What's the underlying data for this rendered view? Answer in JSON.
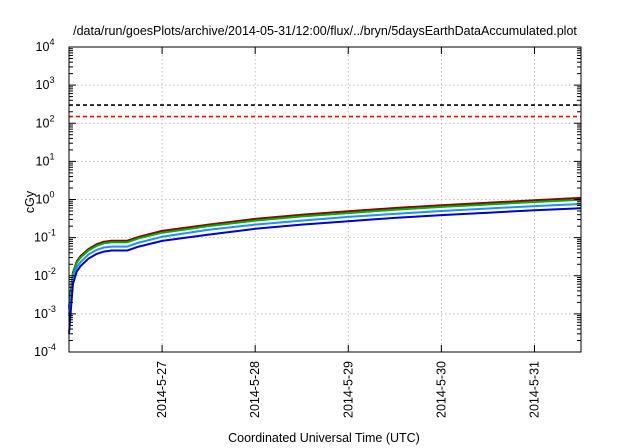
{
  "chart_data": {
    "type": "line",
    "title": "/data/run/goesPlots/archive/2014-05-31/12:00/flux/../bryn/5daysEarthDataAccumulated.plot",
    "xlabel": "Coordinated Universal Time (UTC)",
    "ylabel": "cGy",
    "y_scale": "log",
    "ylim": [
      0.0001,
      10000
    ],
    "xlim": [
      "2014-05-26T00:00",
      "2014-05-31T12:00"
    ],
    "grid": true,
    "x_ticks": [
      {
        "x": "2014-05-27T00:00",
        "label": "2014-5-27"
      },
      {
        "x": "2014-05-28T00:00",
        "label": "2014-5-28"
      },
      {
        "x": "2014-05-29T00:00",
        "label": "2014-5-29"
      },
      {
        "x": "2014-05-30T00:00",
        "label": "2014-5-30"
      },
      {
        "x": "2014-05-31T00:00",
        "label": "2014-5-31"
      }
    ],
    "y_ticks": [
      {
        "y": 0.0001,
        "base": "10",
        "exp": "-4"
      },
      {
        "y": 0.001,
        "base": "10",
        "exp": "-3"
      },
      {
        "y": 0.01,
        "base": "10",
        "exp": "-2"
      },
      {
        "y": 0.1,
        "base": "10",
        "exp": "-1"
      },
      {
        "y": 1,
        "base": "10",
        "exp": "0"
      },
      {
        "y": 10,
        "base": "10",
        "exp": "1"
      },
      {
        "y": 100,
        "base": "10",
        "exp": "2"
      },
      {
        "y": 1000,
        "base": "10",
        "exp": "3"
      },
      {
        "y": 10000,
        "base": "10",
        "exp": "4"
      }
    ],
    "hlines": [
      {
        "y": 300,
        "color": "#000000",
        "style": "dashed"
      },
      {
        "y": 150,
        "color": "#ff0000",
        "style": "dashed"
      }
    ],
    "series": [
      {
        "color": "#8b0000",
        "points": [
          [
            "2014-05-26T00:00",
            0.0015
          ],
          [
            "2014-05-26T01:00",
            0.012
          ],
          [
            "2014-05-26T02:00",
            0.024
          ],
          [
            "2014-05-26T03:00",
            0.033
          ],
          [
            "2014-05-26T05:00",
            0.05
          ],
          [
            "2014-05-26T07:00",
            0.066
          ],
          [
            "2014-05-26T09:00",
            0.078
          ],
          [
            "2014-05-26T11:00",
            0.083
          ],
          [
            "2014-05-26T14:00",
            0.083
          ],
          [
            "2014-05-26T15:00",
            0.083
          ],
          [
            "2014-05-26T18:00",
            0.105
          ],
          [
            "2014-05-27T00:00",
            0.15
          ],
          [
            "2014-05-27T12:00",
            0.22
          ],
          [
            "2014-05-28T00:00",
            0.31
          ],
          [
            "2014-05-28T12:00",
            0.4
          ],
          [
            "2014-05-29T00:00",
            0.49
          ],
          [
            "2014-05-29T12:00",
            0.6
          ],
          [
            "2014-05-30T00:00",
            0.71
          ],
          [
            "2014-05-30T12:00",
            0.82
          ],
          [
            "2014-05-31T00:00",
            0.95
          ],
          [
            "2014-05-31T12:00",
            1.1
          ]
        ]
      },
      {
        "color": "#00b000",
        "points": [
          [
            "2014-05-26T00:00",
            0.0013
          ],
          [
            "2014-05-26T01:00",
            0.011
          ],
          [
            "2014-05-26T02:00",
            0.022
          ],
          [
            "2014-05-26T03:00",
            0.03
          ],
          [
            "2014-05-26T05:00",
            0.046
          ],
          [
            "2014-05-26T07:00",
            0.06
          ],
          [
            "2014-05-26T09:00",
            0.071
          ],
          [
            "2014-05-26T11:00",
            0.076
          ],
          [
            "2014-05-26T14:00",
            0.076
          ],
          [
            "2014-05-26T15:00",
            0.076
          ],
          [
            "2014-05-26T18:00",
            0.096
          ],
          [
            "2014-05-27T00:00",
            0.135
          ],
          [
            "2014-05-27T12:00",
            0.2
          ],
          [
            "2014-05-28T00:00",
            0.28
          ],
          [
            "2014-05-28T12:00",
            0.36
          ],
          [
            "2014-05-29T00:00",
            0.44
          ],
          [
            "2014-05-29T12:00",
            0.54
          ],
          [
            "2014-05-30T00:00",
            0.64
          ],
          [
            "2014-05-30T12:00",
            0.74
          ],
          [
            "2014-05-31T00:00",
            0.86
          ],
          [
            "2014-05-31T12:00",
            0.98
          ]
        ]
      },
      {
        "color": "#1e90ff",
        "points": [
          [
            "2014-05-26T00:00",
            0.0009
          ],
          [
            "2014-05-26T01:00",
            0.008
          ],
          [
            "2014-05-26T02:00",
            0.017
          ],
          [
            "2014-05-26T03:00",
            0.023
          ],
          [
            "2014-05-26T05:00",
            0.036
          ],
          [
            "2014-05-26T07:00",
            0.047
          ],
          [
            "2014-05-26T09:00",
            0.055
          ],
          [
            "2014-05-26T11:00",
            0.058
          ],
          [
            "2014-05-26T14:00",
            0.058
          ],
          [
            "2014-05-26T15:00",
            0.058
          ],
          [
            "2014-05-26T18:00",
            0.074
          ],
          [
            "2014-05-27T00:00",
            0.105
          ],
          [
            "2014-05-27T12:00",
            0.16
          ],
          [
            "2014-05-28T00:00",
            0.22
          ],
          [
            "2014-05-28T12:00",
            0.28
          ],
          [
            "2014-05-29T00:00",
            0.35
          ],
          [
            "2014-05-29T12:00",
            0.42
          ],
          [
            "2014-05-30T00:00",
            0.5
          ],
          [
            "2014-05-30T12:00",
            0.58
          ],
          [
            "2014-05-31T00:00",
            0.67
          ],
          [
            "2014-05-31T12:00",
            0.76
          ]
        ]
      },
      {
        "color": "#0000cd",
        "points": [
          [
            "2014-05-26T00:00",
            0.0003
          ],
          [
            "2014-05-26T01:00",
            0.006
          ],
          [
            "2014-05-26T02:00",
            0.013
          ],
          [
            "2014-05-26T03:00",
            0.018
          ],
          [
            "2014-05-26T05:00",
            0.028
          ],
          [
            "2014-05-26T07:00",
            0.037
          ],
          [
            "2014-05-26T09:00",
            0.043
          ],
          [
            "2014-05-26T11:00",
            0.046
          ],
          [
            "2014-05-26T14:00",
            0.046
          ],
          [
            "2014-05-26T15:00",
            0.046
          ],
          [
            "2014-05-26T18:00",
            0.058
          ],
          [
            "2014-05-27T00:00",
            0.082
          ],
          [
            "2014-05-27T12:00",
            0.12
          ],
          [
            "2014-05-28T00:00",
            0.17
          ],
          [
            "2014-05-28T12:00",
            0.22
          ],
          [
            "2014-05-29T00:00",
            0.27
          ],
          [
            "2014-05-29T12:00",
            0.33
          ],
          [
            "2014-05-30T00:00",
            0.39
          ],
          [
            "2014-05-30T12:00",
            0.45
          ],
          [
            "2014-05-31T00:00",
            0.52
          ],
          [
            "2014-05-31T12:00",
            0.59
          ]
        ]
      }
    ]
  }
}
